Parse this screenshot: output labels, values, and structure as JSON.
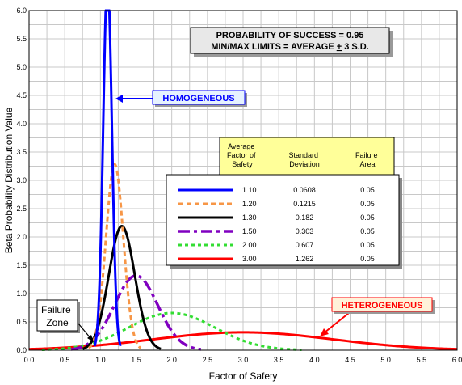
{
  "chart_data": {
    "type": "line",
    "title": "",
    "xlabel": "Factor of Safety",
    "ylabel": "Beta Probability Distribution Value",
    "xlim": [
      0.0,
      6.0
    ],
    "ylim": [
      0.0,
      6.0
    ],
    "x_ticks": [
      "0.0",
      "0.5",
      "1.0",
      "1.5",
      "2.0",
      "2.5",
      "3.0",
      "3.5",
      "4.0",
      "4.5",
      "5.0",
      "5.5",
      "6.0"
    ],
    "y_ticks": [
      "0.0",
      "0.5",
      "1.0",
      "1.5",
      "2.0",
      "2.5",
      "3.0",
      "3.5",
      "4.0",
      "4.5",
      "5.0",
      "5.5",
      "6.0"
    ],
    "grid": true,
    "info_box": {
      "line1": "PROBABILITY OF SUCCESS = 0.95",
      "line2_prefix": "MIN/MAX LIMITS = AVERAGE ",
      "line2_pm": "+",
      "line2_suffix": " 3 S.D."
    },
    "legend": {
      "placement": "right",
      "header_col1": [
        "Average",
        "Factor of",
        "Safety"
      ],
      "header_col2": [
        "Standard",
        "Deviation"
      ],
      "header_col3": [
        "Failure",
        "Area"
      ]
    },
    "series": [
      {
        "average": "1.10",
        "sd": "0.0608",
        "failure_area": "0.05",
        "mean": 1.1,
        "sigma": 0.0608,
        "color": "#0000ff",
        "dash": "",
        "width": 3
      },
      {
        "average": "1.20",
        "sd": "0.1215",
        "failure_area": "0.05",
        "mean": 1.2,
        "sigma": 0.1215,
        "color": "#f79646",
        "dash": "6 4",
        "width": 3
      },
      {
        "average": "1.30",
        "sd": "0.182",
        "failure_area": "0.05",
        "mean": 1.3,
        "sigma": 0.182,
        "color": "#000000",
        "dash": "",
        "width": 3
      },
      {
        "average": "1.50",
        "sd": "0.303",
        "failure_area": "0.05",
        "mean": 1.5,
        "sigma": 0.303,
        "color": "#8000c0",
        "dash": "14 5 4 5",
        "width": 3.5
      },
      {
        "average": "2.00",
        "sd": "0.607",
        "failure_area": "0.05",
        "mean": 2.0,
        "sigma": 0.607,
        "color": "#33dd33",
        "dash": "4 4",
        "width": 3
      },
      {
        "average": "3.00",
        "sd": "1.262",
        "failure_area": "0.05",
        "mean": 3.0,
        "sigma": 1.262,
        "color": "#ff0000",
        "dash": "",
        "width": 3
      }
    ],
    "annotations": {
      "homogeneous": "HOMOGENEOUS",
      "heterogeneous": "HETEROGENEOUS",
      "failure_zone": [
        "Failure",
        "Zone"
      ]
    },
    "colors": {
      "annotation_text": "#0000ff",
      "homogeneous_fill": "#e6f2ff",
      "heterogeneous_text": "#ff0000",
      "heterogeneous_fill": "#fff2d9",
      "legend_header_fill": "#ffff99",
      "info_box_fill": "#e8e8e8"
    }
  }
}
